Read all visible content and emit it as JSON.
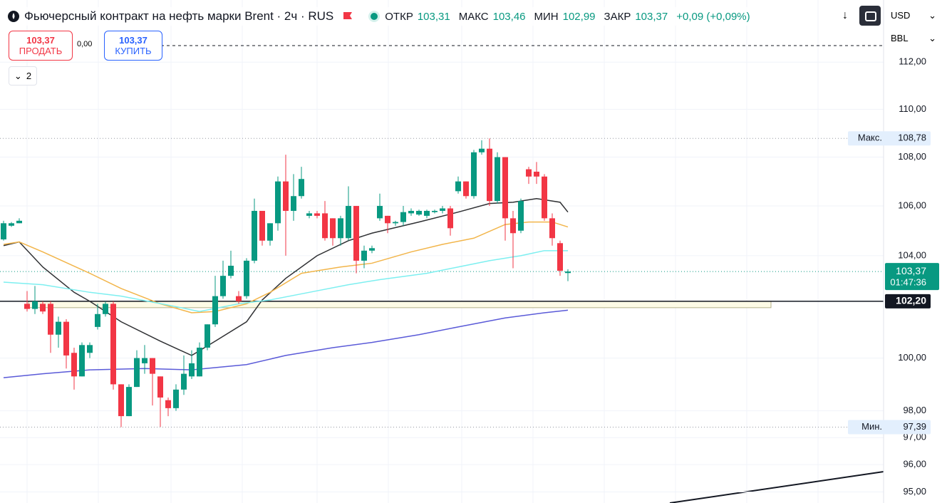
{
  "header": {
    "title": "Фьючерсный контракт на нефть марки Brent · 2ч · RUS",
    "open_caption": "ОТКР",
    "open": "103,31",
    "high_caption": "МАКС",
    "high": "103,46",
    "low_caption": "МИН",
    "low": "102,99",
    "close_caption": "ЗАКР",
    "close": "103,37",
    "change": "+0,09 (+0,09%)",
    "currency": "USD",
    "unit": "BBL"
  },
  "trade": {
    "sell_price": "103,37",
    "sell_label": "ПРОДАТЬ",
    "spread": "0,00",
    "buy_price": "103,37",
    "buy_label": "КУПИТЬ",
    "indicators_count": "2"
  },
  "chart_data": {
    "type": "candlestick",
    "log_scale": true,
    "grid": true,
    "ylim": [
      94.6,
      114.7
    ],
    "yticks": [
      {
        "value": 95,
        "label": "95,00"
      },
      {
        "value": 96,
        "label": "96,00"
      },
      {
        "value": 97,
        "label": "97,00"
      },
      {
        "value": 98,
        "label": "98,00"
      },
      {
        "value": 100,
        "label": "100,00"
      },
      {
        "value": 104,
        "label": "104,00"
      },
      {
        "value": 106,
        "label": "106,00"
      },
      {
        "value": 108,
        "label": "108,00"
      },
      {
        "value": 110,
        "label": "110,00"
      },
      {
        "value": 112,
        "label": "112,00"
      }
    ],
    "up_color": "#089981",
    "down_color": "#f23645",
    "open": [
      104.65,
      105.2,
      105.3,
      102.1,
      101.9,
      102.1,
      102.1,
      100.9,
      101.4,
      100.2,
      99.3,
      100.2,
      101.2,
      101.7,
      102.1,
      99.0,
      97.8,
      98.9,
      99.8,
      100.0,
      99.3,
      98.4,
      98.1,
      98.8,
      99.3,
      99.3,
      100.4,
      101.3,
      102.4,
      103.2,
      102.4,
      102.4,
      103.8,
      105.8,
      104.6,
      105.3,
      107.0,
      105.8,
      106.4,
      105.6,
      105.7,
      105.7,
      105.5,
      104.7,
      104.7,
      106.0,
      103.8,
      104.2,
      105.5,
      105.6,
      105.3,
      105.35,
      105.7,
      105.65,
      105.6,
      105.75,
      105.8,
      105.9,
      106.6,
      107.0,
      106.4,
      108.2,
      108.35,
      106.2,
      108.0,
      105.5,
      105.0,
      107.5,
      107.4,
      107.2,
      105.5,
      104.5,
      103.31
    ],
    "high": [
      105.4,
      105.35,
      105.5,
      102.6,
      102.8,
      102.2,
      102.2,
      101.6,
      101.5,
      100.4,
      100.6,
      100.6,
      102.1,
      102.2,
      102.2,
      99.0,
      99.0,
      100.3,
      100.5,
      100.0,
      99.3,
      98.5,
      99.0,
      100.1,
      100.3,
      100.6,
      101.3,
      103.2,
      103.8,
      104.2,
      102.6,
      103.9,
      106.3,
      105.8,
      105.3,
      107.2,
      108.1,
      107.3,
      107.6,
      105.8,
      105.8,
      106.2,
      105.5,
      105.6,
      106.8,
      106.0,
      104.4,
      104.4,
      106.5,
      105.6,
      105.4,
      106.0,
      105.9,
      105.85,
      105.85,
      105.85,
      106.0,
      106.0,
      107.2,
      107.0,
      108.3,
      108.7,
      108.78,
      108.2,
      108.0,
      105.8,
      106.3,
      107.6,
      107.8,
      107.3,
      105.7,
      104.6,
      103.46
    ],
    "low": [
      104.6,
      105.15,
      105.3,
      101.8,
      101.7,
      101.7,
      100.2,
      100.4,
      99.6,
      98.8,
      99.3,
      100.0,
      101.1,
      101.6,
      98.8,
      97.39,
      97.8,
      98.9,
      99.4,
      98.2,
      97.4,
      97.8,
      98.0,
      98.6,
      99.2,
      99.3,
      100.3,
      101.2,
      102.3,
      103.1,
      102.1,
      102.3,
      103.7,
      104.4,
      104.4,
      105.0,
      104.0,
      105.4,
      106.3,
      105.5,
      105.5,
      104.6,
      104.4,
      104.4,
      104.6,
      103.3,
      103.5,
      104.1,
      105.4,
      104.9,
      105.2,
      105.2,
      105.6,
      105.6,
      105.5,
      105.7,
      105.7,
      104.8,
      106.5,
      106.3,
      106.3,
      108.1,
      106.0,
      106.1,
      104.6,
      103.5,
      104.9,
      106.9,
      106.9,
      105.4,
      104.4,
      103.2,
      102.99
    ],
    "close": [
      105.3,
      105.3,
      105.4,
      101.9,
      102.2,
      101.8,
      100.9,
      101.4,
      100.1,
      99.3,
      100.5,
      100.5,
      101.7,
      102.1,
      99.0,
      97.8,
      98.9,
      100.0,
      100.0,
      99.4,
      98.5,
      98.1,
      98.8,
      99.4,
      99.8,
      100.4,
      101.3,
      102.4,
      103.2,
      103.6,
      102.2,
      103.8,
      105.8,
      104.6,
      105.3,
      107.0,
      105.8,
      106.4,
      107.1,
      105.7,
      105.6,
      104.7,
      104.7,
      105.5,
      106.0,
      103.8,
      104.2,
      104.3,
      106.0,
      105.3,
      105.35,
      105.75,
      105.8,
      105.8,
      105.8,
      105.8,
      105.9,
      105.1,
      107.0,
      106.4,
      108.2,
      108.35,
      106.2,
      108.0,
      105.5,
      104.9,
      106.2,
      107.2,
      107.2,
      105.5,
      104.7,
      103.4,
      103.37
    ],
    "series": [
      {
        "color": "#2f3033",
        "x": [
          0,
          2,
          5,
          9,
          11,
          15,
          20,
          24,
          27,
          31,
          33,
          36,
          40,
          44,
          47,
          53,
          58,
          62,
          65,
          68,
          71,
          72
        ],
        "values": [
          104.4,
          104.55,
          103.55,
          102.55,
          102.2,
          101.4,
          100.65,
          100.1,
          100.65,
          101.4,
          102.25,
          103.1,
          104.0,
          104.6,
          104.9,
          105.35,
          105.75,
          106.1,
          106.15,
          106.3,
          106.15,
          105.75
        ]
      },
      {
        "color": "#f2b54a",
        "x": [
          0,
          2,
          5,
          11,
          15,
          20,
          24,
          27,
          31,
          34,
          38,
          43,
          47,
          52,
          56,
          60,
          64,
          67,
          70,
          72
        ],
        "values": [
          104.45,
          104.55,
          104.15,
          103.3,
          102.7,
          102.1,
          101.75,
          101.8,
          102.1,
          102.55,
          103.3,
          103.55,
          103.7,
          104.15,
          104.45,
          104.7,
          105.25,
          105.35,
          105.35,
          105.15
        ]
      },
      {
        "color": "#7deff0",
        "x": [
          0,
          5,
          11,
          15,
          21,
          25,
          30,
          34,
          39,
          44,
          48,
          54,
          58,
          62,
          66,
          69,
          72
        ],
        "values": [
          102.95,
          102.85,
          102.55,
          102.4,
          102.05,
          101.8,
          102.1,
          102.25,
          102.55,
          102.85,
          103.05,
          103.3,
          103.55,
          103.8,
          104.0,
          104.2,
          104.2
        ]
      },
      {
        "color": "#5a5ad8",
        "x": [
          0,
          5,
          11,
          18,
          24,
          31,
          36,
          42,
          47,
          53,
          58,
          64,
          69,
          72
        ],
        "values": [
          99.25,
          99.4,
          99.55,
          99.6,
          99.55,
          99.75,
          100.1,
          100.4,
          100.6,
          100.9,
          101.2,
          101.55,
          101.75,
          101.85
        ]
      }
    ],
    "max_line": {
      "caption": "Макс.",
      "value": 108.78,
      "label": "108,78"
    },
    "min_line": {
      "caption": "Мин.",
      "value": 97.39,
      "label": "97,39"
    },
    "last_price": {
      "value": 103.37,
      "label": "103,37",
      "countdown": "01:47:36"
    },
    "level": {
      "value": 102.2,
      "label": "102,20"
    }
  }
}
